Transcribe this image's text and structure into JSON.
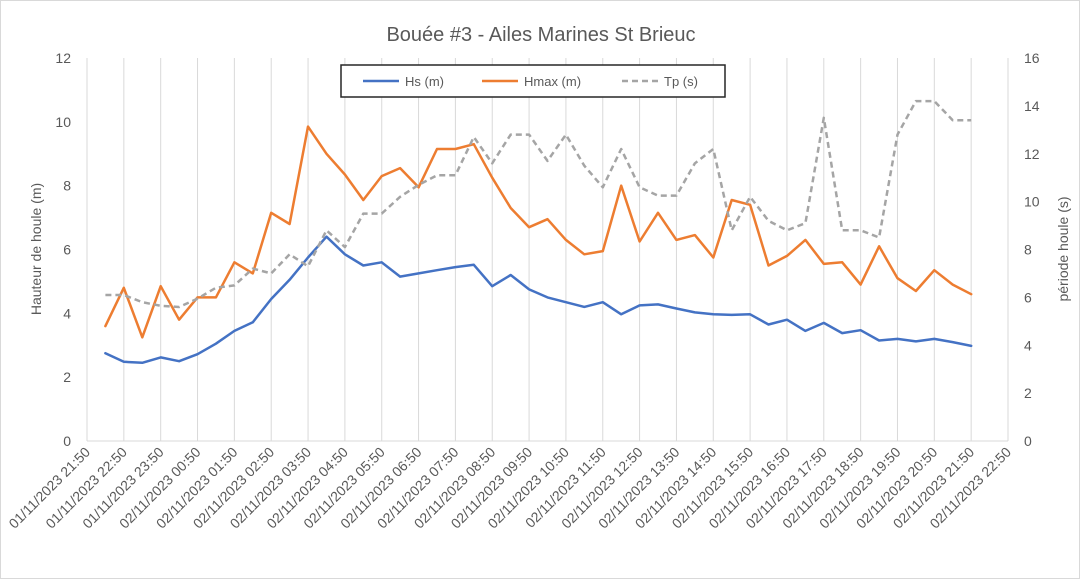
{
  "chart_data": {
    "type": "line",
    "title": "Bouée #3 - Ailes Marines St Brieuc",
    "ylabel": "Hauteur de houle (m)",
    "y2label": "période houle (s)",
    "ylim": [
      0,
      12
    ],
    "y2lim": [
      0,
      16
    ],
    "yticks": [
      "0",
      "2",
      "4",
      "6",
      "8",
      "10",
      "12"
    ],
    "y2ticks": [
      "0",
      "2",
      "4",
      "6",
      "8",
      "10",
      "12",
      "14",
      "16"
    ],
    "xticks": [
      "01/11/2023 21:50",
      "01/11/2023 22:50",
      "01/11/2023 23:50",
      "02/11/2023 00:50",
      "02/11/2023 01:50",
      "02/11/2023 02:50",
      "02/11/2023 03:50",
      "02/11/2023 04:50",
      "02/11/2023 05:50",
      "02/11/2023 06:50",
      "02/11/2023 07:50",
      "02/11/2023 08:50",
      "02/11/2023 09:50",
      "02/11/2023 10:50",
      "02/11/2023 11:50",
      "02/11/2023 12:50",
      "02/11/2023 13:50",
      "02/11/2023 14:50",
      "02/11/2023 15:50",
      "02/11/2023 16:50",
      "02/11/2023 17:50",
      "02/11/2023 18:50",
      "02/11/2023 19:50",
      "02/11/2023 20:50",
      "02/11/2023 21:50",
      "02/11/2023 22:50"
    ],
    "x_start": "01/11/2023 22:20",
    "x_step_minutes": 30,
    "legend_position": "top-center",
    "grid": "vertical",
    "series": [
      {
        "name": "Hs (m)",
        "axis": "left",
        "color": "#4472c4",
        "dash": "",
        "values": [
          2.75,
          2.48,
          2.45,
          2.62,
          2.5,
          2.72,
          3.05,
          3.45,
          3.72,
          4.45,
          5.05,
          5.75,
          6.4,
          5.85,
          5.5,
          5.6,
          5.15,
          5.25,
          5.35,
          5.45,
          5.52,
          4.85,
          5.2,
          4.75,
          4.5,
          4.35,
          4.2,
          4.35,
          3.97,
          4.25,
          4.28,
          4.15,
          4.03,
          3.97,
          3.95,
          3.97,
          3.65,
          3.8,
          3.45,
          3.7,
          3.38,
          3.47,
          3.15,
          3.2,
          3.12,
          3.2,
          3.1,
          2.98
        ]
      },
      {
        "name": "Hmax (m)",
        "axis": "left",
        "color": "#ed7d31",
        "dash": "",
        "values": [
          3.6,
          4.8,
          3.25,
          4.85,
          3.8,
          4.5,
          4.5,
          5.6,
          5.25,
          7.15,
          6.8,
          9.85,
          9.0,
          8.35,
          7.55,
          8.3,
          8.55,
          7.95,
          9.15,
          9.15,
          9.3,
          8.25,
          7.3,
          6.7,
          6.95,
          6.3,
          5.85,
          5.95,
          8.0,
          6.25,
          7.15,
          6.3,
          6.45,
          5.75,
          7.55,
          7.4,
          5.5,
          5.8,
          6.3,
          5.55,
          5.6,
          4.9,
          6.1,
          5.1,
          4.7,
          5.35,
          4.9,
          4.6
        ]
      },
      {
        "name": "Tp (s)",
        "axis": "right",
        "color": "#a5a5a5",
        "dash": "6,4",
        "values": [
          6.1,
          6.1,
          5.8,
          5.65,
          5.6,
          5.95,
          6.4,
          6.5,
          7.2,
          7.0,
          7.8,
          7.3,
          8.8,
          8.1,
          9.5,
          9.5,
          10.2,
          10.7,
          11.1,
          11.1,
          12.7,
          11.6,
          12.8,
          12.8,
          11.7,
          12.8,
          11.5,
          10.6,
          12.2,
          10.6,
          10.25,
          10.25,
          11.6,
          12.2,
          8.8,
          10.2,
          9.2,
          8.8,
          9.1,
          13.5,
          8.8,
          8.8,
          8.5,
          12.8,
          14.2,
          14.2,
          13.4,
          13.4
        ]
      }
    ]
  }
}
